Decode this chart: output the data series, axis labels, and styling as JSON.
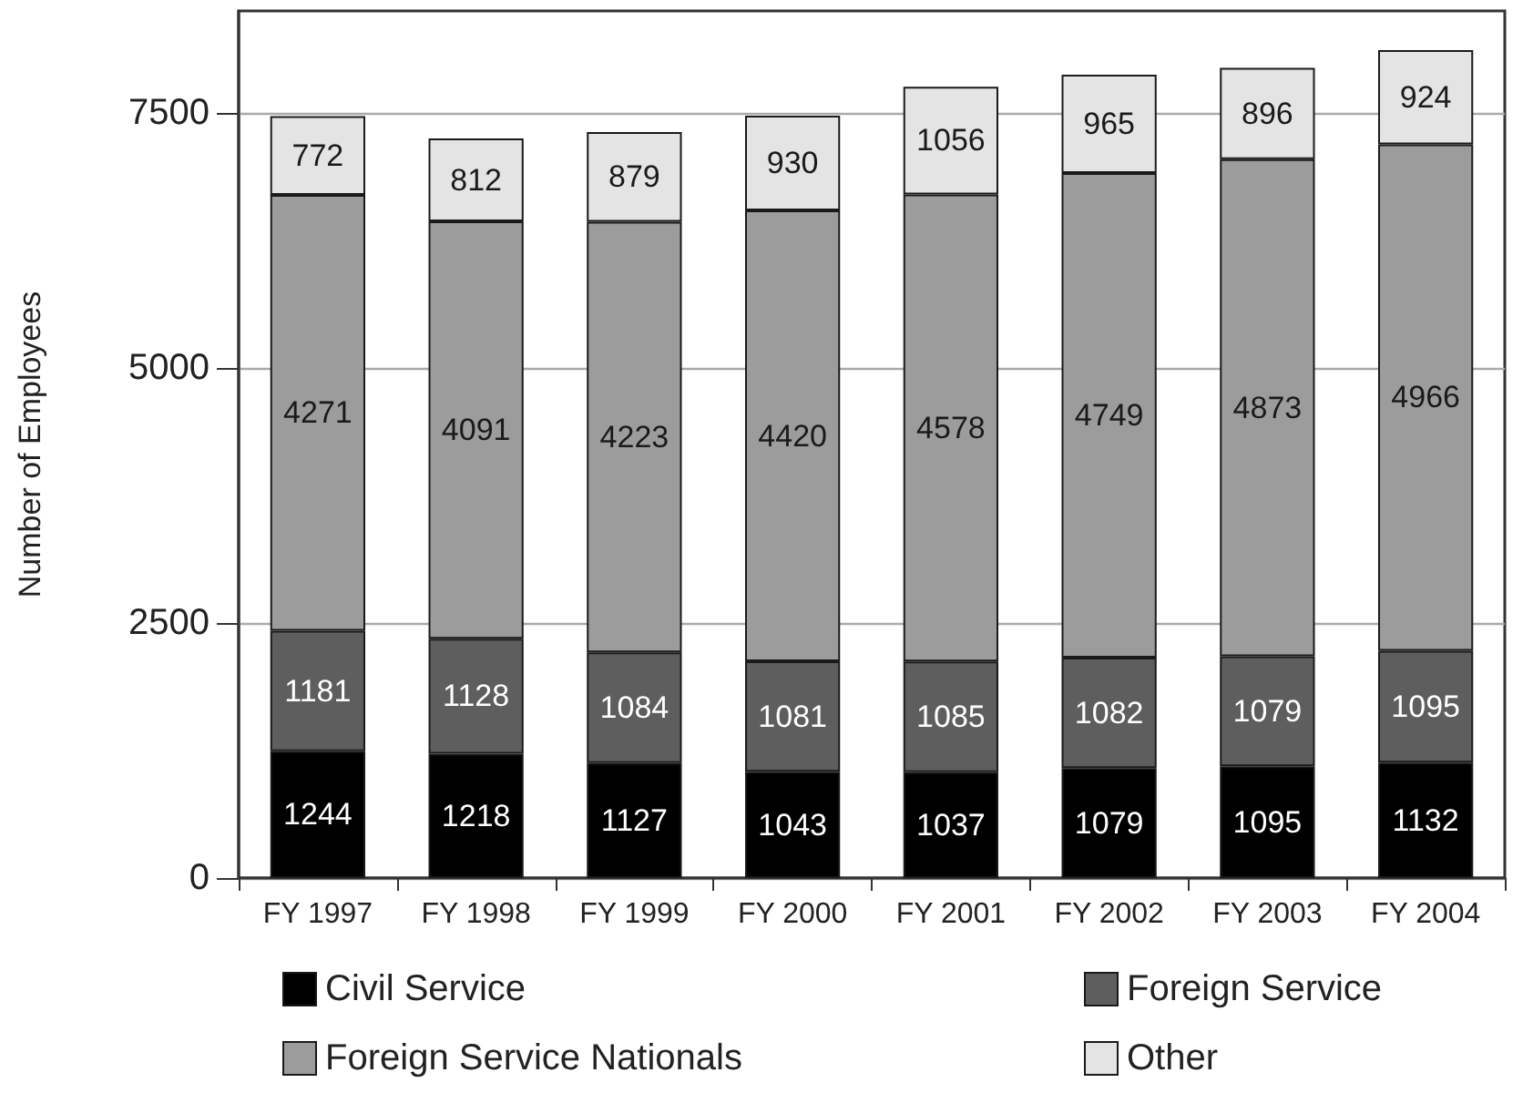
{
  "chart_data": {
    "type": "bar",
    "ylabel": "Number of Employees",
    "categories": [
      "FY 1997",
      "FY 1998",
      "FY 1999",
      "FY 2000",
      "FY 2001",
      "FY 2002",
      "FY 2003",
      "FY 2004"
    ],
    "series": [
      {
        "name": "Civil Service",
        "color": "#000000",
        "values": [
          1244,
          1218,
          1127,
          1043,
          1037,
          1079,
          1095,
          1132
        ]
      },
      {
        "name": "Foreign Service",
        "color": "#5e5e5e",
        "values": [
          1181,
          1128,
          1084,
          1081,
          1085,
          1082,
          1079,
          1095
        ]
      },
      {
        "name": "Foreign Service Nationals",
        "color": "#9c9c9c",
        "values": [
          4271,
          4091,
          4223,
          4420,
          4578,
          4749,
          4873,
          4966
        ]
      },
      {
        "name": "Other",
        "color": "#e4e4e4",
        "values": [
          772,
          812,
          879,
          930,
          1056,
          965,
          896,
          924
        ]
      }
    ],
    "stacked": true,
    "data_labels": true,
    "ylim": [
      0,
      8500
    ],
    "yticks": [
      0,
      2500,
      5000,
      7500
    ],
    "grid": "y",
    "legend": "bottom"
  }
}
